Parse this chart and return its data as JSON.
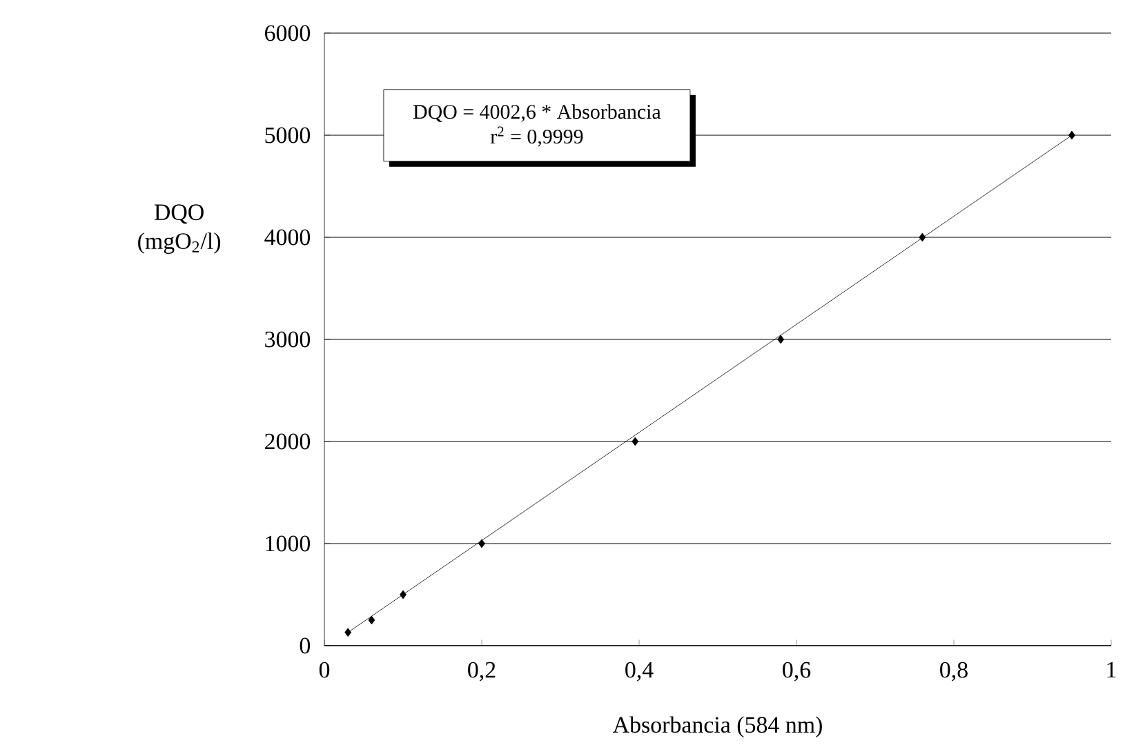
{
  "chart_data": {
    "type": "scatter",
    "xlabel": "Absorbancia (584 nm)",
    "ylabel": "DQO (mgO$_{2}$/l)",
    "annotations": [
      "DQO = 4002,6 * Absorbancia",
      "r$^{2}$ = 0,9999"
    ],
    "series": [
      {
        "color": "#000000",
        "marker": "diamond",
        "x": [
          0.03,
          0.06,
          0.1,
          0.2,
          0.395,
          0.58,
          0.76,
          0.95
        ],
        "values": [
          130,
          250,
          500,
          1000,
          2000,
          3000,
          4000,
          5000
        ]
      },
      {
        "type": "line",
        "color": "#000000",
        "marker": "none",
        "line_style": "solid",
        "x": [
          0.03,
          0.95
        ],
        "values": [
          130,
          5000
        ]
      }
    ],
    "xlim": [
      0,
      1
    ],
    "ylim": [
      0,
      6000
    ],
    "xticks": [
      0,
      {
        "value": 0.2,
        "label": "0,2"
      },
      {
        "value": 0.4,
        "label": "0,4"
      },
      {
        "value": 0.6,
        "label": "0,6"
      },
      {
        "value": 0.8,
        "label": "0,8"
      },
      1
    ],
    "yticks": [
      0,
      1000,
      2000,
      3000,
      4000,
      5000,
      6000
    ],
    "grid": "y"
  }
}
